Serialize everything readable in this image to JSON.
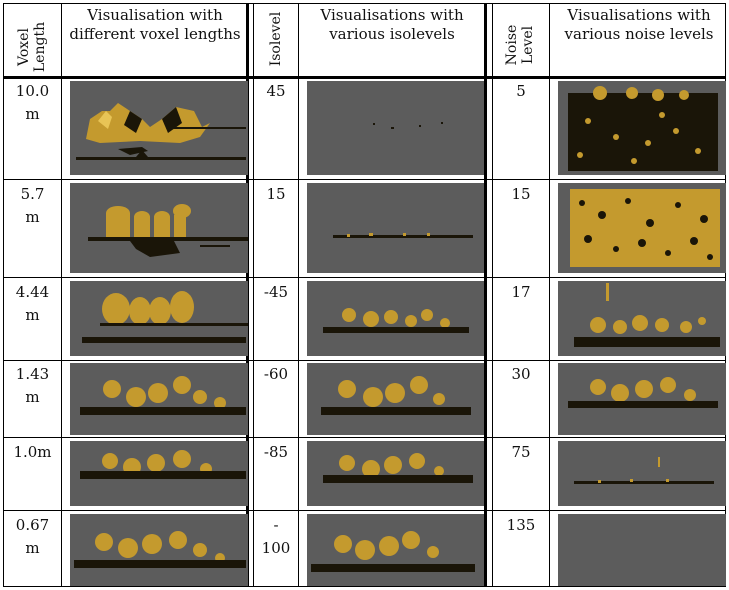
{
  "headers": {
    "voxel_length": [
      "Voxel",
      "Length"
    ],
    "vis_voxel": "Visualisation with different voxel lengths",
    "isolevel": "Isolevel",
    "vis_iso": "Visualisations with various isolevels",
    "noise_level": [
      "Noise",
      "Level"
    ],
    "vis_noise": "Visualisations with various noise levels"
  },
  "rows": [
    {
      "voxel": [
        "10.0",
        "m"
      ],
      "iso": [
        "45"
      ],
      "noise": "5"
    },
    {
      "voxel": [
        "5.7",
        "m"
      ],
      "iso": [
        "15"
      ],
      "noise": "15"
    },
    {
      "voxel": [
        "4.44",
        "m"
      ],
      "iso": [
        "-45"
      ],
      "noise": "17"
    },
    {
      "voxel": [
        "1.43",
        "m"
      ],
      "iso": [
        "-60"
      ],
      "noise": "30"
    },
    {
      "voxel": [
        "1.0m"
      ],
      "iso": [
        "-85"
      ],
      "noise": "75"
    },
    {
      "voxel": [
        "0.67",
        "m"
      ],
      "iso": [
        "-",
        "100"
      ],
      "noise": "135"
    }
  ],
  "colors": {
    "panel_bg": "#5c5c5c",
    "model_gold": "#c9a233",
    "model_dark": "#1a1508"
  }
}
